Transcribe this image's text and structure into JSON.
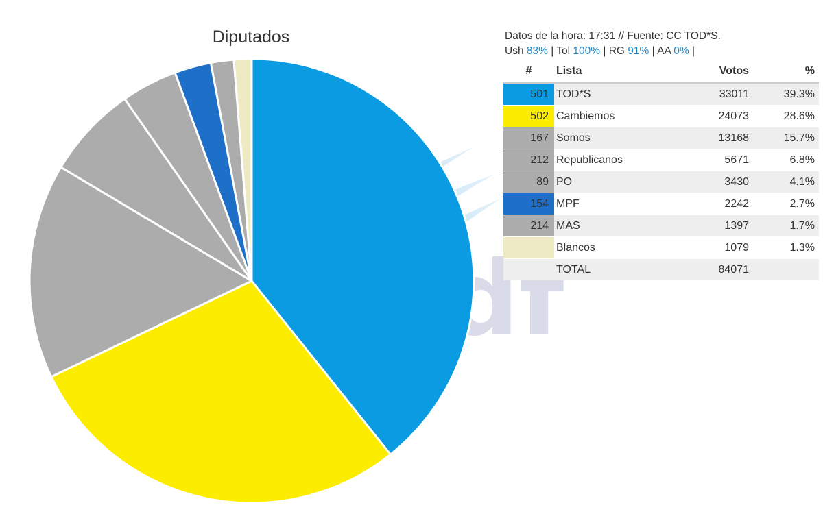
{
  "chart_data": {
    "type": "pie",
    "title": "Diputados",
    "series": [
      {
        "num": "501",
        "label": "TOD*S",
        "votes": 33011,
        "votes_text": "33011",
        "pct_text": "39.3%",
        "color": "#0a9be3"
      },
      {
        "num": "502",
        "label": "Cambiemos",
        "votes": 24073,
        "votes_text": "24073",
        "pct_text": "28.6%",
        "color": "#fcec00"
      },
      {
        "num": "167",
        "label": "Somos",
        "votes": 13168,
        "votes_text": "13168",
        "pct_text": "15.7%",
        "color": "#acacac"
      },
      {
        "num": "212",
        "label": "Republicanos",
        "votes": 5671,
        "votes_text": "5671",
        "pct_text": "6.8%",
        "color": "#acacac"
      },
      {
        "num": "89",
        "label": "PO",
        "votes": 3430,
        "votes_text": "3430",
        "pct_text": "4.1%",
        "color": "#acacac"
      },
      {
        "num": "154",
        "label": "MPF",
        "votes": 2242,
        "votes_text": "2242",
        "pct_text": "2.7%",
        "color": "#1e6fc8"
      },
      {
        "num": "214",
        "label": "MAS",
        "votes": 1397,
        "votes_text": "1397",
        "pct_text": "1.7%",
        "color": "#acacac"
      },
      {
        "num": "",
        "label": "Blancos",
        "votes": 1079,
        "votes_text": "1079",
        "pct_text": "1.3%",
        "color": "#eeeac4"
      }
    ],
    "total_label": "TOTAL",
    "total_votes": "84071"
  },
  "info": {
    "line1": "Datos de la hora: 17:31 // Fuente: CC TOD*S.",
    "regions": [
      {
        "name": "Ush",
        "value": "83%"
      },
      {
        "name": "Tol",
        "value": "100%"
      },
      {
        "name": "RG",
        "value": "91%"
      },
      {
        "name": "AA",
        "value": "0%"
      }
    ]
  },
  "table": {
    "headers": {
      "num": "#",
      "list": "Lista",
      "votes": "Votos",
      "pct": "%"
    }
  },
  "watermark": {
    "text": "tdf"
  }
}
